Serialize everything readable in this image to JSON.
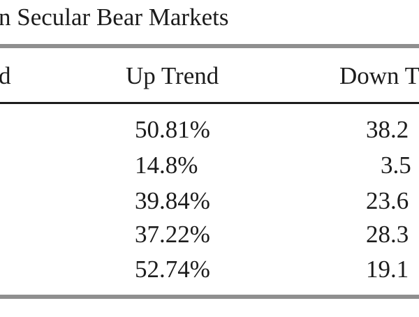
{
  "title": "n Secular Bear Markets",
  "headers": {
    "left": "d",
    "up_trend": "Up Trend",
    "down_trend": "Down T"
  },
  "rows": [
    {
      "up": "50.81%",
      "down": "38.2"
    },
    {
      "up": "14.8%",
      "down": "3.5"
    },
    {
      "up": "39.84%",
      "down": "23.6"
    },
    {
      "up": "37.22%",
      "down": "28.3"
    },
    {
      "up": "52.74%",
      "down": "19.1"
    }
  ]
}
